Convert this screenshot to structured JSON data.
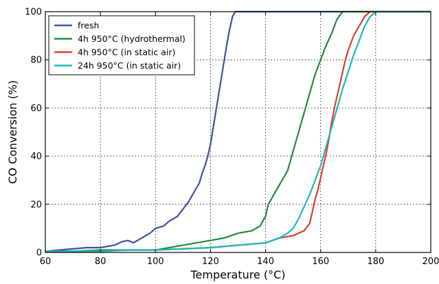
{
  "chart_data": {
    "type": "line",
    "title": "",
    "xlabel": "Temperature (°C)",
    "ylabel": "CO Conversion (%)",
    "xlim": [
      60,
      200
    ],
    "ylim": [
      0,
      100
    ],
    "xticks": [
      60,
      80,
      100,
      120,
      140,
      160,
      180,
      200
    ],
    "yticks": [
      0,
      20,
      40,
      60,
      80,
      100
    ],
    "grid": true,
    "legend_position": "top-left",
    "series": [
      {
        "name": "fresh",
        "color": "#3e4fa3",
        "x": [
          60,
          65,
          70,
          75,
          80,
          85,
          88,
          90,
          92,
          95,
          98,
          100,
          103,
          105,
          108,
          110,
          112,
          114,
          116,
          117,
          118,
          119,
          120,
          121,
          122,
          123,
          124,
          125,
          126,
          127,
          128,
          129,
          130,
          140,
          160,
          180,
          200
        ],
        "y": [
          0.5,
          1,
          1.5,
          2,
          2,
          3,
          4.5,
          5,
          4,
          6,
          8,
          10,
          11,
          13,
          15,
          18,
          21,
          25,
          29,
          33,
          36,
          40,
          45,
          52,
          59,
          66,
          73,
          80,
          87,
          93,
          98,
          100,
          100,
          100,
          100,
          100,
          100
        ]
      },
      {
        "name": "4h 950°C (hydrothermal)",
        "color": "#1f8a3c",
        "x": [
          60,
          70,
          80,
          90,
          100,
          105,
          110,
          115,
          120,
          125,
          130,
          135,
          138,
          140,
          141,
          142,
          145,
          148,
          150,
          152,
          154,
          156,
          158,
          160,
          162,
          164,
          166,
          168,
          170,
          180,
          200
        ],
        "y": [
          0.5,
          0.5,
          1,
          1,
          1,
          2,
          3,
          4,
          5,
          6,
          8,
          9,
          11,
          15,
          20,
          22,
          28,
          34,
          42,
          50,
          58,
          66,
          74,
          80,
          86,
          91,
          97,
          100,
          100,
          100,
          100
        ]
      },
      {
        "name": "4h 950°C (in static air)",
        "color": "#e2382c",
        "x": [
          60,
          70,
          80,
          90,
          100,
          110,
          120,
          130,
          140,
          145,
          150,
          154,
          156,
          157,
          158,
          159,
          160,
          161,
          162,
          163,
          164,
          165,
          166,
          167,
          168,
          169,
          170,
          171,
          172,
          173,
          174,
          175,
          176,
          177,
          178,
          180,
          200
        ],
        "y": [
          0.5,
          0.5,
          0.5,
          1,
          1,
          1.5,
          2,
          3,
          4,
          6,
          7,
          9,
          12,
          17,
          22,
          26,
          31,
          36,
          41,
          47,
          54,
          60,
          65,
          70,
          75,
          80,
          84,
          87,
          90,
          92,
          94,
          96,
          98,
          99,
          100,
          100,
          100
        ]
      },
      {
        "name": "24h 950°C (in static air)",
        "color": "#19b7b7",
        "x": [
          60,
          70,
          80,
          90,
          100,
          110,
          120,
          130,
          140,
          145,
          148,
          150,
          152,
          154,
          156,
          158,
          160,
          162,
          164,
          166,
          168,
          170,
          172,
          174,
          176,
          178,
          180,
          200
        ],
        "y": [
          0.5,
          0.5,
          0.5,
          1,
          1,
          1.5,
          2,
          3,
          4,
          6,
          8,
          10,
          14,
          19,
          24,
          30,
          36,
          44,
          52,
          60,
          68,
          75,
          82,
          88,
          94,
          98,
          100,
          100
        ]
      }
    ]
  }
}
